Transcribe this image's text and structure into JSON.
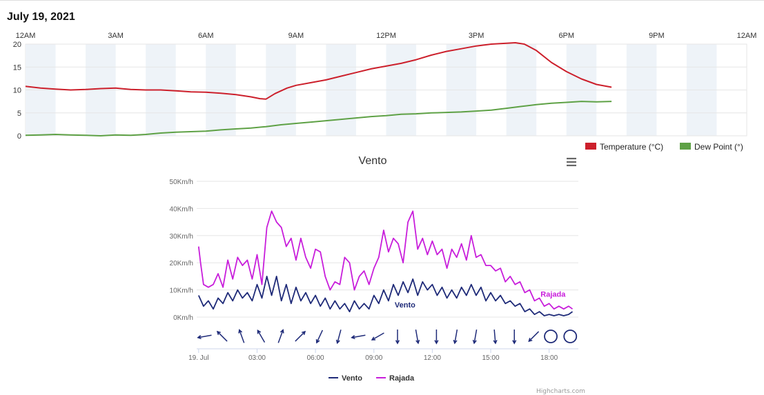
{
  "page": {
    "date_title": "July 19, 2021"
  },
  "chart_data": [
    {
      "type": "line",
      "time_labels": [
        "12AM",
        "3AM",
        "6AM",
        "9AM",
        "12PM",
        "3PM",
        "6PM",
        "9PM",
        "12AM"
      ],
      "x_range_hours": [
        0,
        24
      ],
      "ylim": [
        0,
        20
      ],
      "y_ticks": [
        "0",
        "5",
        "10",
        "15",
        "20"
      ],
      "grid": true,
      "shaded_bands": "alternating hours",
      "legend_placement": "bottom-right",
      "series": [
        {
          "name": "Temperature (°C)",
          "color": "#cc1f2b",
          "points": [
            [
              0,
              10.8
            ],
            [
              0.5,
              10.4
            ],
            [
              1,
              10.2
            ],
            [
              1.5,
              10.0
            ],
            [
              2,
              10.1
            ],
            [
              2.5,
              10.3
            ],
            [
              3,
              10.4
            ],
            [
              3.5,
              10.1
            ],
            [
              4,
              10.0
            ],
            [
              4.5,
              10.0
            ],
            [
              5,
              9.8
            ],
            [
              5.5,
              9.6
            ],
            [
              6,
              9.5
            ],
            [
              6.5,
              9.3
            ],
            [
              7,
              9.0
            ],
            [
              7.5,
              8.5
            ],
            [
              7.8,
              8.1
            ],
            [
              8,
              8.0
            ],
            [
              8.3,
              9.2
            ],
            [
              8.7,
              10.4
            ],
            [
              9,
              11.0
            ],
            [
              9.5,
              11.6
            ],
            [
              10,
              12.2
            ],
            [
              10.5,
              13.0
            ],
            [
              11,
              13.8
            ],
            [
              11.5,
              14.6
            ],
            [
              12,
              15.2
            ],
            [
              12.5,
              15.8
            ],
            [
              13,
              16.6
            ],
            [
              13.5,
              17.6
            ],
            [
              14,
              18.4
            ],
            [
              14.5,
              19.0
            ],
            [
              15,
              19.6
            ],
            [
              15.5,
              20.0
            ],
            [
              16,
              20.2
            ],
            [
              16.3,
              20.3
            ],
            [
              16.6,
              20.0
            ],
            [
              17,
              18.6
            ],
            [
              17.5,
              16.0
            ],
            [
              18,
              14.0
            ],
            [
              18.5,
              12.4
            ],
            [
              19,
              11.2
            ],
            [
              19.5,
              10.6
            ]
          ]
        },
        {
          "name": "Dew Point (°)",
          "color": "#5ea145",
          "points": [
            [
              0,
              0.1
            ],
            [
              0.5,
              0.2
            ],
            [
              1,
              0.3
            ],
            [
              1.5,
              0.2
            ],
            [
              2,
              0.1
            ],
            [
              2.5,
              0.0
            ],
            [
              3,
              0.2
            ],
            [
              3.5,
              0.1
            ],
            [
              4,
              0.3
            ],
            [
              4.5,
              0.6
            ],
            [
              5,
              0.8
            ],
            [
              5.5,
              0.9
            ],
            [
              6,
              1.0
            ],
            [
              6.5,
              1.3
            ],
            [
              7,
              1.5
            ],
            [
              7.5,
              1.7
            ],
            [
              8,
              2.0
            ],
            [
              8.5,
              2.4
            ],
            [
              9,
              2.7
            ],
            [
              9.5,
              3.0
            ],
            [
              10,
              3.3
            ],
            [
              10.5,
              3.6
            ],
            [
              11,
              3.9
            ],
            [
              11.5,
              4.2
            ],
            [
              12,
              4.4
            ],
            [
              12.5,
              4.7
            ],
            [
              13,
              4.8
            ],
            [
              13.5,
              5.0
            ],
            [
              14,
              5.1
            ],
            [
              14.5,
              5.2
            ],
            [
              15,
              5.4
            ],
            [
              15.5,
              5.6
            ],
            [
              16,
              6.0
            ],
            [
              16.5,
              6.4
            ],
            [
              17,
              6.8
            ],
            [
              17.5,
              7.1
            ],
            [
              18,
              7.3
            ],
            [
              18.5,
              7.5
            ],
            [
              19,
              7.4
            ],
            [
              19.5,
              7.5
            ]
          ]
        }
      ]
    },
    {
      "type": "line",
      "title": "Vento",
      "y_ticks": [
        "0Km/h",
        "10Km/h",
        "20Km/h",
        "30Km/h",
        "40Km/h",
        "50Km/h"
      ],
      "ylim": [
        0,
        50
      ],
      "x_range_hours": [
        -0.1,
        19.5
      ],
      "x_ticks": [
        {
          "h": 0,
          "label": "19. Jul"
        },
        {
          "h": 3,
          "label": "03:00"
        },
        {
          "h": 6,
          "label": "06:00"
        },
        {
          "h": 9,
          "label": "09:00"
        },
        {
          "h": 12,
          "label": "12:00"
        },
        {
          "h": 15,
          "label": "15:00"
        },
        {
          "h": 18,
          "label": "18:00"
        }
      ],
      "legend_placement": "bottom-center",
      "series": [
        {
          "name": "Vento",
          "color": "#1e2a78",
          "points": [
            [
              0,
              8
            ],
            [
              0.25,
              4
            ],
            [
              0.5,
              6
            ],
            [
              0.75,
              3
            ],
            [
              1,
              7
            ],
            [
              1.25,
              5
            ],
            [
              1.5,
              9
            ],
            [
              1.75,
              6
            ],
            [
              2,
              10
            ],
            [
              2.25,
              7
            ],
            [
              2.5,
              9
            ],
            [
              2.75,
              6
            ],
            [
              3,
              12
            ],
            [
              3.25,
              7
            ],
            [
              3.5,
              15
            ],
            [
              3.75,
              8
            ],
            [
              4,
              15
            ],
            [
              4.25,
              6
            ],
            [
              4.5,
              12
            ],
            [
              4.75,
              5
            ],
            [
              5,
              11
            ],
            [
              5.25,
              6
            ],
            [
              5.5,
              9
            ],
            [
              5.75,
              5
            ],
            [
              6,
              8
            ],
            [
              6.25,
              4
            ],
            [
              6.5,
              7
            ],
            [
              6.75,
              3
            ],
            [
              7,
              6
            ],
            [
              7.25,
              3
            ],
            [
              7.5,
              5
            ],
            [
              7.75,
              2
            ],
            [
              8,
              6
            ],
            [
              8.25,
              3
            ],
            [
              8.5,
              5
            ],
            [
              8.75,
              3
            ],
            [
              9,
              8
            ],
            [
              9.25,
              5
            ],
            [
              9.5,
              10
            ],
            [
              9.75,
              6
            ],
            [
              10,
              12
            ],
            [
              10.25,
              8
            ],
            [
              10.5,
              13
            ],
            [
              10.75,
              9
            ],
            [
              11,
              14
            ],
            [
              11.25,
              8
            ],
            [
              11.5,
              13
            ],
            [
              11.75,
              10
            ],
            [
              12,
              12
            ],
            [
              12.25,
              8
            ],
            [
              12.5,
              11
            ],
            [
              12.75,
              7
            ],
            [
              13,
              10
            ],
            [
              13.25,
              7
            ],
            [
              13.5,
              11
            ],
            [
              13.75,
              8
            ],
            [
              14,
              12
            ],
            [
              14.25,
              8
            ],
            [
              14.5,
              11
            ],
            [
              14.75,
              6
            ],
            [
              15,
              9
            ],
            [
              15.25,
              6
            ],
            [
              15.5,
              8
            ],
            [
              15.75,
              5
            ],
            [
              16,
              6
            ],
            [
              16.25,
              4
            ],
            [
              16.5,
              5
            ],
            [
              16.75,
              2
            ],
            [
              17,
              3
            ],
            [
              17.25,
              1
            ],
            [
              17.5,
              2
            ],
            [
              17.75,
              0.5
            ],
            [
              18,
              1
            ],
            [
              18.25,
              0.5
            ],
            [
              18.5,
              1
            ],
            [
              18.75,
              0.5
            ],
            [
              19,
              1
            ],
            [
              19.2,
              2
            ]
          ]
        },
        {
          "name": "Rajada",
          "color": "#c81ddb",
          "points": [
            [
              0,
              26
            ],
            [
              0.1,
              20
            ],
            [
              0.25,
              12
            ],
            [
              0.5,
              11
            ],
            [
              0.75,
              12
            ],
            [
              1,
              16
            ],
            [
              1.25,
              11
            ],
            [
              1.5,
              21
            ],
            [
              1.75,
              14
            ],
            [
              2,
              22
            ],
            [
              2.25,
              19
            ],
            [
              2.5,
              21
            ],
            [
              2.75,
              14
            ],
            [
              3,
              23
            ],
            [
              3.25,
              12
            ],
            [
              3.5,
              33
            ],
            [
              3.75,
              39
            ],
            [
              4,
              35
            ],
            [
              4.25,
              33
            ],
            [
              4.5,
              26
            ],
            [
              4.75,
              29
            ],
            [
              5,
              21
            ],
            [
              5.25,
              29
            ],
            [
              5.5,
              22
            ],
            [
              5.75,
              18
            ],
            [
              6,
              25
            ],
            [
              6.25,
              24
            ],
            [
              6.5,
              15
            ],
            [
              6.75,
              10
            ],
            [
              7,
              13
            ],
            [
              7.25,
              12
            ],
            [
              7.5,
              22
            ],
            [
              7.75,
              20
            ],
            [
              8,
              10
            ],
            [
              8.25,
              15
            ],
            [
              8.5,
              17
            ],
            [
              8.75,
              12
            ],
            [
              9,
              18
            ],
            [
              9.25,
              22
            ],
            [
              9.5,
              32
            ],
            [
              9.75,
              24
            ],
            [
              10,
              29
            ],
            [
              10.25,
              27
            ],
            [
              10.5,
              20
            ],
            [
              10.75,
              35
            ],
            [
              11,
              39
            ],
            [
              11.25,
              25
            ],
            [
              11.5,
              29
            ],
            [
              11.75,
              23
            ],
            [
              12,
              28
            ],
            [
              12.25,
              23
            ],
            [
              12.5,
              25
            ],
            [
              12.75,
              18
            ],
            [
              13,
              25
            ],
            [
              13.25,
              22
            ],
            [
              13.5,
              27
            ],
            [
              13.75,
              21
            ],
            [
              14,
              30
            ],
            [
              14.25,
              22
            ],
            [
              14.5,
              23
            ],
            [
              14.75,
              19
            ],
            [
              15,
              19
            ],
            [
              15.25,
              17
            ],
            [
              15.5,
              18
            ],
            [
              15.75,
              13
            ],
            [
              16,
              15
            ],
            [
              16.25,
              12
            ],
            [
              16.5,
              13
            ],
            [
              16.75,
              9
            ],
            [
              17,
              10
            ],
            [
              17.25,
              6
            ],
            [
              17.5,
              7
            ],
            [
              17.75,
              4
            ],
            [
              18,
              5
            ],
            [
              18.25,
              3
            ],
            [
              18.5,
              4
            ],
            [
              18.75,
              3
            ],
            [
              19,
              4
            ],
            [
              19.2,
              3
            ]
          ]
        }
      ],
      "series_labels": [
        {
          "text": "Vento",
          "color": "#1e2a78",
          "h": 10.6,
          "v": 3.5
        },
        {
          "text": "Rajada",
          "color": "#c81ddb",
          "h": 18.2,
          "v": 7.5
        }
      ],
      "wind_direction_arrows": {
        "color": "#1e2a78",
        "items": [
          {
            "h": 0.1,
            "dir": 170
          },
          {
            "h": 1.0,
            "dir": 225
          },
          {
            "h": 2.0,
            "dir": 250
          },
          {
            "h": 3.0,
            "dir": 240
          },
          {
            "h": 4.0,
            "dir": 290
          },
          {
            "h": 5.0,
            "dir": 315
          },
          {
            "h": 6.0,
            "dir": 115
          },
          {
            "h": 7.0,
            "dir": 105
          },
          {
            "h": 8.0,
            "dir": 170
          },
          {
            "h": 9.0,
            "dir": 150
          },
          {
            "h": 10.0,
            "dir": 90
          },
          {
            "h": 11.0,
            "dir": 80
          },
          {
            "h": 12.0,
            "dir": 90
          },
          {
            "h": 13.0,
            "dir": 100
          },
          {
            "h": 14.0,
            "dir": 100
          },
          {
            "h": 15.0,
            "dir": 85
          },
          {
            "h": 16.0,
            "dir": 90
          },
          {
            "h": 17.0,
            "dir": 135
          }
        ],
        "calm_markers_h": [
          17.8,
          18.8
        ]
      },
      "menu_icon": "hamburger-menu-icon",
      "credits": "Highcharts.com"
    }
  ]
}
